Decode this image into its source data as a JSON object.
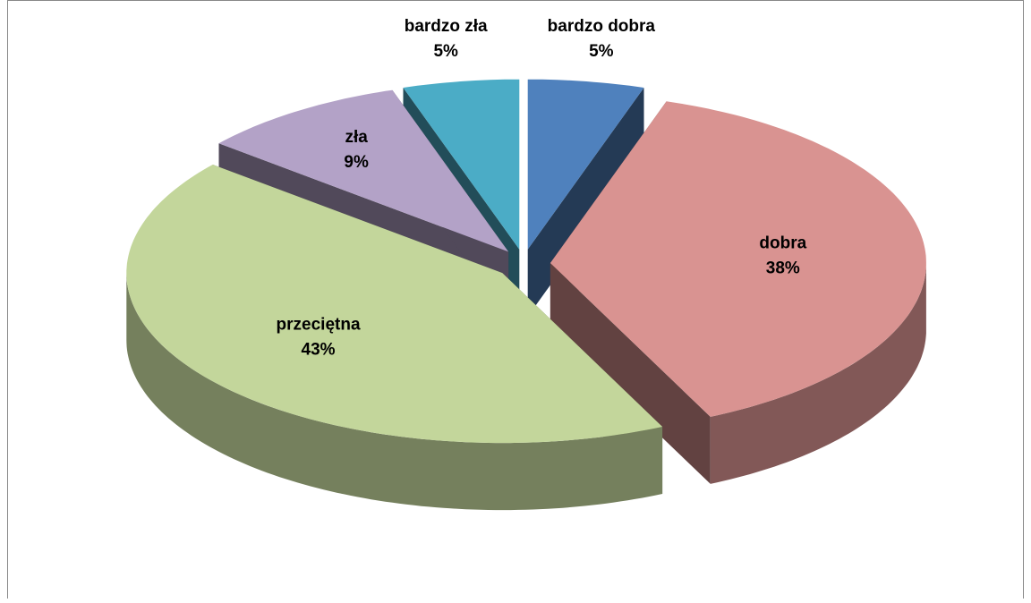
{
  "chart_data": {
    "type": "pie",
    "categories": [
      "bardzo dobra",
      "dobra",
      "przeciętna",
      "zła",
      "bardzo zła"
    ],
    "values": [
      5,
      38,
      43,
      9,
      5
    ],
    "value_labels": [
      "5%",
      "38%",
      "43%",
      "9%",
      "5%"
    ],
    "colors": [
      "#4f81bd",
      "#d99391",
      "#c3d69b",
      "#b3a2c7",
      "#4bacc6"
    ]
  }
}
